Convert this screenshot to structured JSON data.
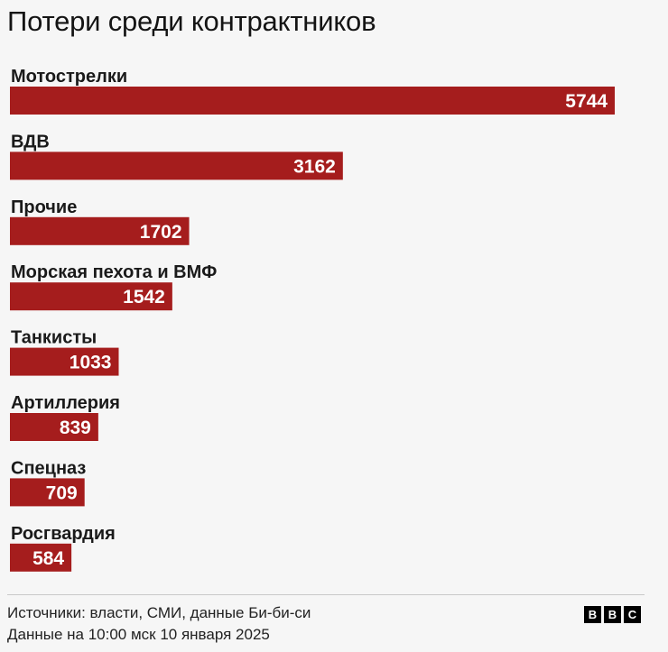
{
  "header": {
    "title": "Потери среди контрактников"
  },
  "chart_data": {
    "type": "bar",
    "orientation": "horizontal",
    "categories": [
      "Мотострелки",
      "ВДВ",
      "Прочие",
      "Морская пехота и ВМФ",
      "Танкисты",
      "Артиллерия",
      "Спецназ",
      "Росгвардия"
    ],
    "values": [
      5744,
      3162,
      1702,
      1542,
      1033,
      839,
      709,
      584
    ],
    "title": "Потери среди контрактников",
    "xlabel": "",
    "ylabel": "",
    "xlim": [
      0,
      5744
    ],
    "grid": false,
    "legend": "none"
  },
  "colors": {
    "bar": "#a51d1d",
    "background": "#f6f6f6"
  },
  "footer": {
    "source": "Источники: власти, СМИ, данные Би-би-си",
    "date": "Данные на 10:00 мск 10 января 2025",
    "logo_letters": [
      "B",
      "B",
      "C"
    ]
  }
}
